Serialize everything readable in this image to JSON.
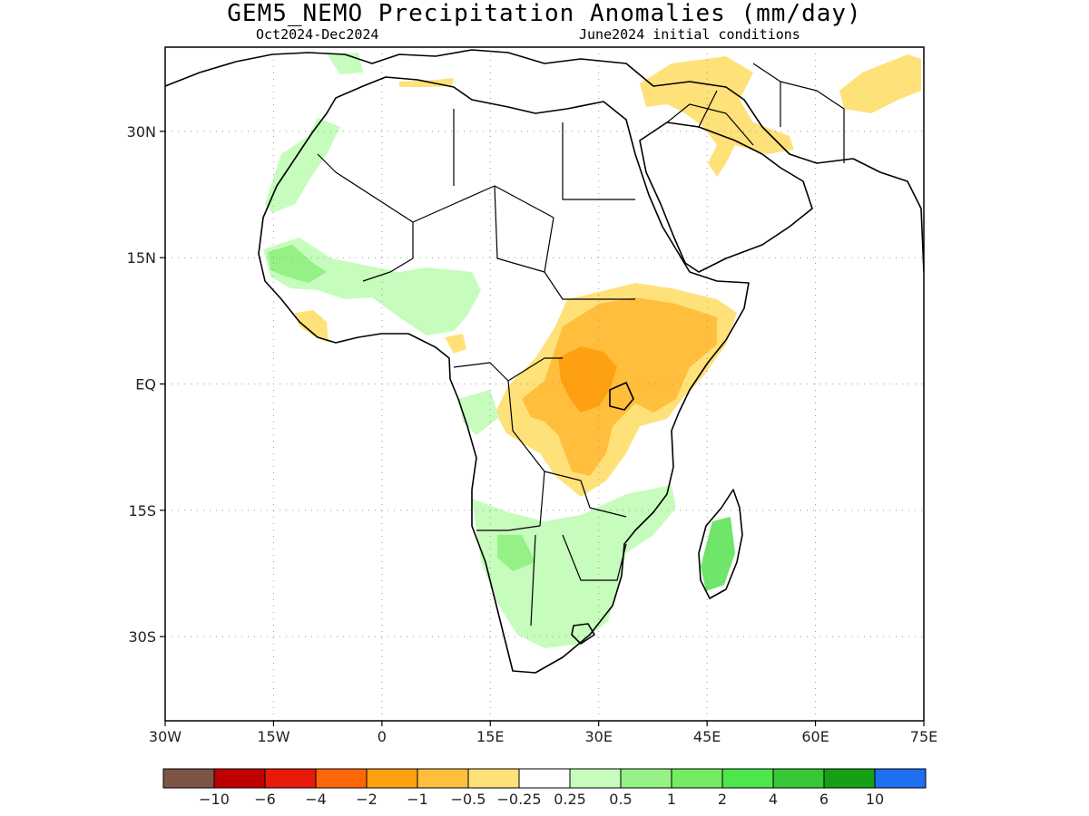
{
  "header": {
    "title": "GEM5_NEMO Precipitation Anomalies (mm/day)",
    "period": "Oct2024-Dec2024",
    "init": "June2024 initial conditions"
  },
  "map": {
    "lon_range": [
      -30,
      75
    ],
    "lat_range": [
      -40,
      40
    ],
    "lon_ticks": [
      {
        "value": -30,
        "label": "30W"
      },
      {
        "value": -15,
        "label": "15W"
      },
      {
        "value": 0,
        "label": "0"
      },
      {
        "value": 15,
        "label": "15E"
      },
      {
        "value": 30,
        "label": "30E"
      },
      {
        "value": 45,
        "label": "45E"
      },
      {
        "value": 60,
        "label": "60E"
      },
      {
        "value": 75,
        "label": "75E"
      }
    ],
    "lat_ticks": [
      {
        "value": 30,
        "label": "30N"
      },
      {
        "value": 15,
        "label": "15N"
      },
      {
        "value": 0,
        "label": "EQ"
      },
      {
        "value": -15,
        "label": "15S"
      },
      {
        "value": -30,
        "label": "30S"
      }
    ],
    "gridlines": true,
    "colors": {
      "dry_light": "#ffe17a",
      "dry_mid": "#ffbf3c",
      "dry_strong": "#ffa010",
      "wet_light": "#c6fcbc",
      "wet_mid": "#95f185",
      "wet_strong": "#6fe56a",
      "coast": "#000000"
    }
  },
  "colorbar": {
    "colors": [
      "#7d5446",
      "#bf0000",
      "#e81a0a",
      "#ff6608",
      "#ffa010",
      "#ffbf3c",
      "#ffe17a",
      "#ffffff",
      "#c6fcbc",
      "#95f185",
      "#74eb63",
      "#4de64b",
      "#35c834",
      "#16a016",
      "#1f6ff0"
    ],
    "labels": [
      "-10",
      "-6",
      "-4",
      "-2",
      "-1",
      "-0.5",
      "-0.25",
      "0.25",
      "0.5",
      "1",
      "2",
      "4",
      "6",
      "10"
    ]
  }
}
